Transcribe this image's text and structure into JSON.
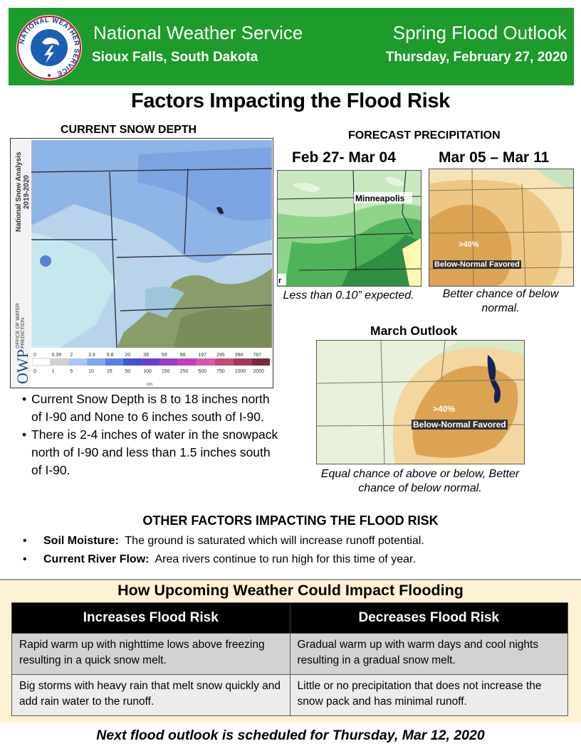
{
  "header": {
    "org_name": "National Weather Service",
    "office": "Sioux Falls, South Dakota",
    "product": "Spring Flood Outlook",
    "date": "Thursday, February 27, 2020",
    "logo_text": "NATIONAL WEATHER SERVICE",
    "bg_color": "#1d9b2b"
  },
  "title": "Factors Impacting the Flood Risk",
  "snow_depth": {
    "heading": "CURRENT SNOW DEPTH",
    "map_side_label": "National Snow Analysis 2019-2020",
    "agency_label": "OFFICE OF WATER PREDICTION",
    "agency_abbr": "OWP",
    "scale_inches": [
      "0",
      "0.39",
      "2",
      "3.9",
      "9.8",
      "20",
      "39",
      "59",
      "98",
      "197",
      "295",
      "394",
      "787"
    ],
    "scale_cm": [
      "0",
      "1",
      "5",
      "10",
      "25",
      "50",
      "100",
      "150",
      "250",
      "500",
      "750",
      "1000",
      "2000"
    ],
    "scale_unit": "cm",
    "bullets": [
      "Current Snow Depth is 8 to 18 inches north of I-90 and None to 6 inches south of I-90.",
      "There is 2-4 inches of water in the snowpack north of I-90 and less than 1.5 inches south of I-90."
    ]
  },
  "forecast_precip": {
    "heading": "FORECAST PRECIPITATION",
    "period1": {
      "label": "Feb 27- Mar 04",
      "map_city": "Minneapolis",
      "caption": "Less than 0.10” expected."
    },
    "period2": {
      "label": "Mar 05 – Mar 11",
      "probability": ">40%",
      "favored": "Below-Normal Favored",
      "caption": "Better chance of below normal."
    },
    "march": {
      "label": "March Outlook",
      "probability": ">40%",
      "favored": "Below-Normal Favored",
      "caption": "Equal chance of above or below, Better chance of below normal."
    }
  },
  "other_factors": {
    "heading": "OTHER FACTORS IMPACTING THE FLOOD RISK",
    "items": [
      {
        "label": "Soil Moisture:",
        "text": "The ground is saturated which will increase runoff potential."
      },
      {
        "label": "Current River Flow:",
        "text": "Area rivers continue to run high for this time of year."
      }
    ]
  },
  "impact_table": {
    "heading": "How Upcoming Weather Could Impact Flooding",
    "columns": [
      "Increases Flood Risk",
      "Decreases Flood Risk"
    ],
    "rows": [
      [
        "Rapid warm up with nighttime lows above freezing resulting in a quick snow melt.",
        "Gradual warm up with warm days and cool nights resulting in a gradual snow melt."
      ],
      [
        "Big storms with heavy rain that melt snow quickly and add rain water to the runoff.",
        "Little or no precipitation that does not increase the snow pack and has minimal runoff."
      ]
    ]
  },
  "footer": "Next flood outlook is scheduled for Thursday, Mar 12, 2020"
}
